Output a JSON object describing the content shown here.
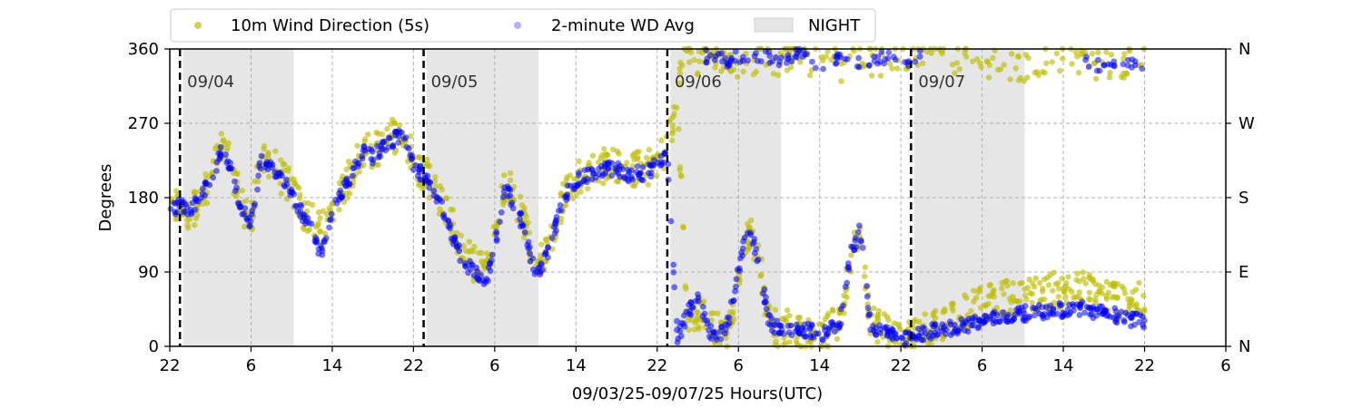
{
  "chart_data": {
    "type": "scatter",
    "xlabel": "09/03/25-09/07/25  Hours(UTC)",
    "ylabel": "Degrees",
    "x_range_hours": [
      22,
      126
    ],
    "ylim": [
      0,
      360
    ],
    "x_tick_hours": [
      22,
      30,
      38,
      46,
      54,
      62,
      70,
      78,
      86,
      94,
      102,
      110,
      118,
      126
    ],
    "x_tick_labels": [
      "22",
      "6",
      "14",
      "22",
      "6",
      "14",
      "22",
      "6",
      "14",
      "22",
      "6",
      "14",
      "22",
      "6"
    ],
    "y_ticks": [
      0,
      90,
      180,
      270,
      360
    ],
    "y_tick_labels": [
      "0",
      "90",
      "180",
      "270",
      "360"
    ],
    "y2_ticks": [
      0,
      90,
      180,
      270,
      360
    ],
    "y2_tick_labels": [
      "N",
      "E",
      "S",
      "W",
      "N"
    ],
    "grid": true,
    "legend_position": "top-left, above plot",
    "legend": [
      {
        "label": "10m Wind Direction (5s)",
        "color": "#bfbf00",
        "kind": "marker"
      },
      {
        "label": "2-minute WD Avg",
        "color": "#0000ff",
        "kind": "marker"
      },
      {
        "label": "NIGHT",
        "color": "#e6e6e6",
        "kind": "patch"
      }
    ],
    "night_periods_hours": [
      [
        23.3,
        34.2
      ],
      [
        47.3,
        58.3
      ],
      [
        71.3,
        82.2
      ],
      [
        95.3,
        106.2
      ]
    ],
    "day_markers": [
      {
        "label": "09/04",
        "hour": 23
      },
      {
        "label": "09/05",
        "hour": 47
      },
      {
        "label": "09/06",
        "hour": 71
      },
      {
        "label": "09/07",
        "hour": 95
      }
    ],
    "series": [
      {
        "name": "10m Wind Direction (5s)",
        "color": "#bfbf00",
        "spread_deg": 22,
        "points": [
          [
            22,
            160
          ],
          [
            23,
            170
          ],
          [
            24,
            155
          ],
          [
            25,
            185
          ],
          [
            26,
            200
          ],
          [
            27,
            240
          ],
          [
            28,
            220
          ],
          [
            29,
            175
          ],
          [
            30,
            150
          ],
          [
            31,
            230
          ],
          [
            32,
            225
          ],
          [
            33,
            205
          ],
          [
            34,
            190
          ],
          [
            35,
            165
          ],
          [
            36,
            150
          ],
          [
            37,
            140
          ],
          [
            38,
            165
          ],
          [
            39,
            190
          ],
          [
            40,
            210
          ],
          [
            41,
            240
          ],
          [
            42,
            235
          ],
          [
            43,
            245
          ],
          [
            44,
            255
          ],
          [
            45,
            260
          ],
          [
            46,
            225
          ],
          [
            47,
            210
          ],
          [
            48,
            195
          ],
          [
            49,
            170
          ],
          [
            50,
            140
          ],
          [
            51,
            110
          ],
          [
            52,
            100
          ],
          [
            53,
            90
          ],
          [
            54,
            130
          ],
          [
            55,
            200
          ],
          [
            56,
            180
          ],
          [
            57,
            150
          ],
          [
            58,
            95
          ],
          [
            59,
            110
          ],
          [
            60,
            150
          ],
          [
            61,
            190
          ],
          [
            62,
            205
          ],
          [
            63,
            210
          ],
          [
            64,
            215
          ],
          [
            65,
            220
          ],
          [
            66,
            220
          ],
          [
            67,
            210
          ],
          [
            68,
            215
          ],
          [
            69,
            215
          ],
          [
            70,
            225
          ],
          [
            71,
            240
          ],
          [
            72,
            300
          ],
          [
            73,
            15
          ],
          [
            74,
            40
          ],
          [
            75,
            30
          ],
          [
            76,
            20
          ],
          [
            77,
            15
          ],
          [
            78,
            80
          ],
          [
            79,
            140
          ],
          [
            80,
            110
          ],
          [
            81,
            30
          ],
          [
            82,
            20
          ],
          [
            83,
            25
          ],
          [
            84,
            15
          ],
          [
            85,
            20
          ],
          [
            86,
            10
          ],
          [
            87,
            20
          ],
          [
            88,
            30
          ],
          [
            89,
            100
          ],
          [
            90,
            150
          ],
          [
            91,
            30
          ],
          [
            92,
            25
          ],
          [
            93,
            20
          ],
          [
            94,
            10
          ],
          [
            95,
            12
          ],
          [
            96,
            18
          ],
          [
            97,
            25
          ],
          [
            98,
            30
          ],
          [
            99,
            35
          ],
          [
            100,
            40
          ],
          [
            101,
            45
          ],
          [
            102,
            50
          ],
          [
            103,
            55
          ],
          [
            104,
            58
          ],
          [
            105,
            60
          ],
          [
            106,
            62
          ],
          [
            107,
            62
          ],
          [
            108,
            65
          ],
          [
            109,
            68
          ],
          [
            110,
            66
          ],
          [
            111,
            68
          ],
          [
            112,
            70
          ],
          [
            113,
            65
          ],
          [
            114,
            62
          ],
          [
            115,
            60
          ],
          [
            116,
            58
          ],
          [
            117,
            55
          ],
          [
            118,
            55
          ]
        ],
        "upper_band_points": [
          [
            72.2,
            330
          ],
          [
            73,
            355
          ],
          [
            74,
            345
          ],
          [
            75,
            350
          ],
          [
            76,
            348
          ],
          [
            77,
            352
          ],
          [
            78,
            340
          ],
          [
            80,
            350
          ],
          [
            82,
            345
          ],
          [
            83,
            355
          ],
          [
            84,
            350
          ],
          [
            86,
            345
          ],
          [
            88,
            340
          ],
          [
            90,
            350
          ],
          [
            92,
            345
          ],
          [
            94,
            350
          ],
          [
            96,
            355
          ],
          [
            98,
            345
          ],
          [
            100,
            350
          ],
          [
            102,
            345
          ],
          [
            104,
            342
          ],
          [
            106,
            340
          ],
          [
            108,
            348
          ],
          [
            110,
            350
          ],
          [
            112,
            345
          ],
          [
            114,
            340
          ],
          [
            116,
            345
          ],
          [
            118,
            348
          ]
        ]
      },
      {
        "name": "2-minute WD Avg",
        "color": "#0000ff",
        "points": [
          [
            22,
            165
          ],
          [
            23,
            170
          ],
          [
            24,
            160
          ],
          [
            25,
            180
          ],
          [
            26,
            200
          ],
          [
            27,
            235
          ],
          [
            28,
            215
          ],
          [
            29,
            170
          ],
          [
            30,
            150
          ],
          [
            31,
            225
          ],
          [
            32,
            220
          ],
          [
            33,
            200
          ],
          [
            34,
            185
          ],
          [
            35,
            160
          ],
          [
            36,
            140
          ],
          [
            37,
            110
          ],
          [
            38,
            160
          ],
          [
            39,
            190
          ],
          [
            40,
            210
          ],
          [
            41,
            235
          ],
          [
            42,
            230
          ],
          [
            43,
            240
          ],
          [
            44,
            250
          ],
          [
            45,
            255
          ],
          [
            46,
            220
          ],
          [
            47,
            205
          ],
          [
            48,
            190
          ],
          [
            49,
            165
          ],
          [
            50,
            130
          ],
          [
            51,
            100
          ],
          [
            52,
            90
          ],
          [
            53,
            70
          ],
          [
            54,
            120
          ],
          [
            55,
            195
          ],
          [
            56,
            170
          ],
          [
            57,
            140
          ],
          [
            58,
            85
          ],
          [
            59,
            105
          ],
          [
            60,
            145
          ],
          [
            61,
            185
          ],
          [
            62,
            200
          ],
          [
            63,
            205
          ],
          [
            64,
            210
          ],
          [
            65,
            215
          ],
          [
            66,
            215
          ],
          [
            67,
            205
          ],
          [
            68,
            210
          ],
          [
            69,
            210
          ],
          [
            70,
            220
          ],
          [
            71,
            230
          ],
          [
            72,
            10
          ],
          [
            73,
            40
          ],
          [
            74,
            60
          ],
          [
            75,
            20
          ],
          [
            76,
            10
          ],
          [
            77,
            30
          ],
          [
            78,
            90
          ],
          [
            79,
            150
          ],
          [
            80,
            100
          ],
          [
            81,
            30
          ],
          [
            82,
            20
          ],
          [
            83,
            25
          ],
          [
            84,
            15
          ],
          [
            85,
            20
          ],
          [
            86,
            10
          ],
          [
            87,
            20
          ],
          [
            88,
            30
          ],
          [
            89,
            110
          ],
          [
            90,
            140
          ],
          [
            91,
            25
          ],
          [
            92,
            20
          ],
          [
            93,
            15
          ],
          [
            94,
            8
          ],
          [
            95,
            8
          ],
          [
            96,
            15
          ],
          [
            97,
            18
          ],
          [
            98,
            20
          ],
          [
            99,
            22
          ],
          [
            100,
            25
          ],
          [
            101,
            28
          ],
          [
            102,
            30
          ],
          [
            103,
            33
          ],
          [
            104,
            36
          ],
          [
            105,
            38
          ],
          [
            106,
            40
          ],
          [
            107,
            40
          ],
          [
            108,
            42
          ],
          [
            109,
            45
          ],
          [
            110,
            44
          ],
          [
            111,
            45
          ],
          [
            112,
            46
          ],
          [
            113,
            42
          ],
          [
            114,
            40
          ],
          [
            115,
            38
          ],
          [
            116,
            35
          ],
          [
            117,
            32
          ],
          [
            118,
            30
          ]
        ],
        "upper_band_points": [
          [
            74.5,
            350
          ],
          [
            76,
            355
          ],
          [
            77,
            345
          ],
          [
            78,
            350
          ],
          [
            80,
            352
          ],
          [
            82,
            345
          ],
          [
            83,
            350
          ],
          [
            84,
            355
          ],
          [
            86,
            340
          ],
          [
            88,
            350
          ],
          [
            90,
            345
          ],
          [
            92,
            350
          ],
          [
            94,
            345
          ],
          [
            96,
            350
          ],
          [
            112,
            345
          ],
          [
            114,
            340
          ],
          [
            116,
            345
          ],
          [
            118,
            342
          ]
        ]
      }
    ]
  }
}
